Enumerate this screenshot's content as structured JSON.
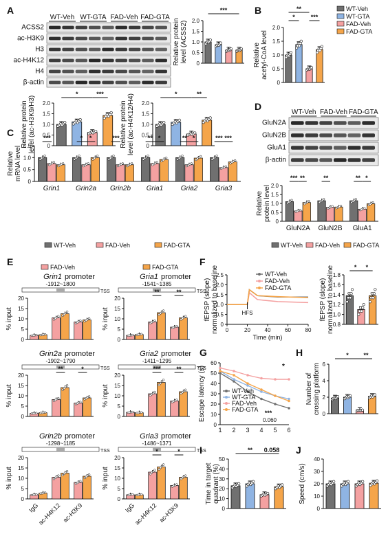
{
  "figure": {
    "panel_letters": [
      "A",
      "B",
      "C",
      "D",
      "E",
      "F",
      "G",
      "H",
      "I",
      "J"
    ]
  },
  "colors": {
    "wt_veh": "#707070",
    "wt_gta": "#8fb4e3",
    "fad_veh": "#f4a1a1",
    "fad_gta": "#f5a54a",
    "ink": "#111111"
  },
  "panel_a": {
    "blot_headers": [
      "WT-Veh",
      "WT-GTA",
      "FAD-Veh",
      "FAD-GTA"
    ],
    "blot_rows": [
      "ACSS2",
      "ac-H3K9",
      "H3",
      "ac-H4K12",
      "H4",
      "β-actin"
    ]
  },
  "panel_d": {
    "blot_headers": [
      "WT-Veh",
      "FAD-Veh",
      "FAD-GTA"
    ],
    "blot_rows": [
      "GluN2A",
      "GluN2B",
      "GluA1",
      "β-actin"
    ]
  },
  "panel_e_header": {
    "left_legend": "FAD-Veh",
    "right_legend": "FAD-GTA"
  },
  "legends": {
    "b": [
      "WT-Veh",
      "WT-GTA",
      "FAD-Veh",
      "FAD-GTA"
    ],
    "cd": [
      "WT-Veh",
      "FAD-Veh",
      "FAD-GTA"
    ],
    "f": [
      "WT-Veh",
      "FAD-Veh",
      "FAD-GTA"
    ],
    "g": [
      "WT-Veh",
      "WT-GTA",
      "FAD-Veh",
      "FAD-GTA"
    ]
  },
  "chart_data": [
    {
      "id": "A1",
      "type": "bar",
      "ylabel": "Relative protein level (ACSS2)",
      "ylim": [
        0,
        2.0
      ],
      "yticks": [
        "0",
        "0.5",
        "1.0",
        "1.5",
        "2.0"
      ],
      "categories": [
        "WT-Veh",
        "WT-GTA",
        "FAD-Veh",
        "FAD-GTA"
      ],
      "values": [
        1.0,
        0.87,
        0.62,
        0.62
      ],
      "sig": [
        "***"
      ]
    },
    {
      "id": "A2",
      "type": "bar",
      "ylabel": "Relative protein level (ac-H3K9/H3)",
      "ylim": [
        0,
        2.0
      ],
      "yticks": [
        "0",
        "0.5",
        "1.0",
        "1.5",
        "2.0"
      ],
      "categories": [
        "WT-Veh",
        "WT-GTA",
        "FAD-Veh",
        "FAD-GTA"
      ],
      "values": [
        1.0,
        1.12,
        0.62,
        1.42
      ],
      "sig": [
        "*",
        "***"
      ]
    },
    {
      "id": "A3",
      "type": "bar",
      "ylabel": "Relative protein level (ac-H4K12/H4)",
      "ylim": [
        0,
        2.0
      ],
      "yticks": [
        "0",
        "0.5",
        "1.0",
        "1.5",
        "2.0"
      ],
      "categories": [
        "WT-Veh",
        "WT-GTA",
        "FAD-Veh",
        "FAD-GTA"
      ],
      "values": [
        1.0,
        1.1,
        0.55,
        1.2
      ],
      "sig": [
        "*",
        "**"
      ]
    },
    {
      "id": "B",
      "type": "bar",
      "ylabel": "Relative acetyl-CoA level",
      "ylim": [
        0,
        2.0
      ],
      "yticks": [
        "0",
        "0.5",
        "1.0",
        "1.5",
        "2.0"
      ],
      "categories": [
        "WT-Veh",
        "WT-GTA",
        "FAD-Veh",
        "FAD-GTA"
      ],
      "values": [
        1.0,
        1.38,
        0.5,
        1.2
      ],
      "sig": [
        "*",
        "**",
        "***"
      ]
    },
    {
      "id": "C",
      "type": "bar",
      "ylabel": "Relative mRNA level",
      "ylim": [
        0,
        1.5
      ],
      "yticks": [
        "0",
        "0.5",
        "1.0",
        "1.5"
      ],
      "categories": [
        "Grin1",
        "Grin2a",
        "Grin2b",
        "Gria1",
        "Gria2",
        "Gria3"
      ],
      "series": [
        {
          "name": "WT-Veh",
          "values": [
            1.0,
            1.0,
            1.0,
            1.0,
            1.0,
            1.0
          ]
        },
        {
          "name": "FAD-Veh",
          "values": [
            0.75,
            0.7,
            0.7,
            0.75,
            0.7,
            0.58
          ]
        },
        {
          "name": "FAD-GTA",
          "values": [
            0.7,
            1.0,
            0.7,
            0.92,
            0.98,
            0.82
          ]
        }
      ],
      "sig": [
        "***",
        "*",
        "*",
        "***",
        "**",
        "*",
        "**",
        "*",
        "***",
        "***"
      ]
    },
    {
      "id": "D",
      "type": "bar",
      "ylabel": "Relative protein level",
      "ylim": [
        0,
        2.0
      ],
      "yticks": [
        "0",
        "0.5",
        "1.0",
        "1.5",
        "2.0"
      ],
      "categories": [
        "GluN2A",
        "GluN2B",
        "GluA1"
      ],
      "series": [
        {
          "name": "WT-Veh",
          "values": [
            1.1,
            1.15,
            1.15
          ]
        },
        {
          "name": "FAD-Veh",
          "values": [
            0.58,
            0.78,
            0.68
          ]
        },
        {
          "name": "FAD-GTA",
          "values": [
            1.05,
            0.8,
            0.98
          ]
        }
      ],
      "sig": [
        "***",
        "**",
        "**",
        "**",
        "*"
      ]
    },
    {
      "id": "E1",
      "type": "bar",
      "title": "Grin1 promoter",
      "region": "-1912~1800",
      "tss": "TSS",
      "ylabel": "% input",
      "ylim": [
        0,
        20
      ],
      "yticks": [
        "0",
        "5",
        "10",
        "15",
        "20"
      ],
      "categories": [
        "IgG",
        "ac-H4K12",
        "ac-H3K9"
      ],
      "series": [
        {
          "name": "FAD-Veh",
          "values": [
            2.0,
            10.5,
            8.5
          ]
        },
        {
          "name": "FAD-GTA",
          "values": [
            2.3,
            12.5,
            9.5
          ]
        }
      ],
      "sig": []
    },
    {
      "id": "E2",
      "type": "bar",
      "title": "Gria1 promoter",
      "region": "-1541~1385",
      "tss": "TSS",
      "ylabel": "% input",
      "ylim": [
        0,
        20
      ],
      "yticks": [
        "0",
        "5",
        "10",
        "15",
        "20"
      ],
      "categories": [
        "IgG",
        "ac-H4K12",
        "ac-H3K9"
      ],
      "series": [
        {
          "name": "FAD-Veh",
          "values": [
            2.0,
            8.5,
            6.0
          ]
        },
        {
          "name": "FAD-GTA",
          "values": [
            2.4,
            13.0,
            10.5
          ]
        }
      ],
      "sig": [
        "**",
        "**"
      ]
    },
    {
      "id": "E3",
      "type": "bar",
      "title": "Grin2a promoter",
      "region": "-1902~1790",
      "tss": "TSS",
      "ylabel": "% input",
      "ylim": [
        0,
        20
      ],
      "yticks": [
        "0",
        "5",
        "10",
        "15",
        "20"
      ],
      "categories": [
        "IgG",
        "ac-H4K12",
        "ac-H3K9"
      ],
      "series": [
        {
          "name": "FAD-Veh",
          "values": [
            1.5,
            8.2,
            6.5
          ]
        },
        {
          "name": "FAD-GTA",
          "values": [
            1.8,
            14.0,
            9.0
          ]
        }
      ],
      "sig": [
        "**",
        "*"
      ]
    },
    {
      "id": "E4",
      "type": "bar",
      "title": "Gria2 promoter",
      "region": "-1411~1295",
      "tss": "TSS",
      "ylabel": "% input",
      "ylim": [
        0,
        20
      ],
      "yticks": [
        "0",
        "5",
        "10",
        "15",
        "20"
      ],
      "categories": [
        "IgG",
        "ac-H4K12",
        "ac-H3K9"
      ],
      "series": [
        {
          "name": "FAD-Veh",
          "values": [
            2.0,
            11.0,
            7.5
          ]
        },
        {
          "name": "FAD-GTA",
          "values": [
            1.8,
            16.5,
            12.0
          ]
        }
      ],
      "sig": [
        "***",
        "**"
      ]
    },
    {
      "id": "E5",
      "type": "bar",
      "title": "Grin2b promoter",
      "region": "-1298~1185",
      "tss": "TSS",
      "ylabel": "% input",
      "ylim": [
        0,
        20
      ],
      "yticks": [
        "0",
        "5",
        "10",
        "15",
        "20"
      ],
      "categories": [
        "IgG",
        "ac-H4K12",
        "ac-H3K9"
      ],
      "series": [
        {
          "name": "FAD-Veh",
          "values": [
            2.0,
            10.5,
            8.0
          ]
        },
        {
          "name": "FAD-GTA",
          "values": [
            2.8,
            12.5,
            11.0
          ]
        }
      ],
      "sig": []
    },
    {
      "id": "E6",
      "type": "bar",
      "title": "Gria3 promoter",
      "region": "-1486~1371",
      "tss": "TSS",
      "ylabel": "% input",
      "ylim": [
        0,
        20
      ],
      "yticks": [
        "0",
        "5",
        "10",
        "15",
        "20"
      ],
      "categories": [
        "IgG",
        "ac-H4K12",
        "ac-H3K9"
      ],
      "series": [
        {
          "name": "FAD-Veh",
          "values": [
            2.0,
            13.0,
            6.5
          ]
        },
        {
          "name": "FAD-GTA",
          "values": [
            2.0,
            15.5,
            10.5
          ]
        }
      ],
      "sig": [
        "*",
        "*"
      ]
    },
    {
      "id": "F1",
      "type": "line",
      "ylabel": "fEPSP (slope) normalized to baseline",
      "xlabel": "Time (min)",
      "xlim": [
        0,
        80
      ],
      "ylim": [
        0,
        2.5
      ],
      "xticks": [
        "0",
        "20",
        "40",
        "60",
        "80"
      ],
      "yticks": [
        "0",
        "0.5",
        "1.0",
        "1.5",
        "2.0",
        "2.5"
      ],
      "annotation": "HFS",
      "series": [
        {
          "name": "WT-Veh",
          "x": [
            0,
            20,
            22,
            30,
            50,
            80
          ],
          "y": [
            1.0,
            1.0,
            1.75,
            1.45,
            1.38,
            1.38
          ]
        },
        {
          "name": "FAD-Veh",
          "x": [
            0,
            20,
            22,
            30,
            50,
            80
          ],
          "y": [
            1.0,
            1.0,
            1.6,
            1.25,
            1.15,
            1.1
          ]
        },
        {
          "name": "FAD-GTA",
          "x": [
            0,
            20,
            22,
            30,
            50,
            80
          ],
          "y": [
            1.0,
            1.0,
            1.75,
            1.45,
            1.4,
            1.35
          ]
        }
      ]
    },
    {
      "id": "F2",
      "type": "bar",
      "ylabel": "fEPSP (slope) normalized to baseline",
      "ylim": [
        0.8,
        1.8
      ],
      "yticks": [
        "0.8",
        "1.0",
        "1.2",
        "1.4",
        "1.6",
        "1.8"
      ],
      "categories": [
        "WT-Veh",
        "FAD-Veh",
        "FAD-GTA"
      ],
      "values": [
        1.38,
        1.1,
        1.38
      ],
      "sig": [
        "*",
        "*"
      ]
    },
    {
      "id": "G",
      "type": "line",
      "ylabel": "Escape latency (s)",
      "xlim": [
        1,
        6
      ],
      "ylim": [
        0,
        60
      ],
      "xticks": [
        "1",
        "2",
        "3",
        "4",
        "5",
        "6"
      ],
      "yticks": [
        "0",
        "10",
        "20",
        "30",
        "40",
        "50",
        "60"
      ],
      "annotations": [
        "*",
        "***",
        "0.060"
      ],
      "series": [
        {
          "name": "WT-Veh",
          "x": [
            1,
            2,
            3,
            4,
            5,
            6
          ],
          "y": [
            50,
            42,
            32,
            25,
            20,
            16
          ]
        },
        {
          "name": "WT-GTA",
          "x": [
            1,
            2,
            3,
            4,
            5,
            6
          ],
          "y": [
            52,
            44,
            38,
            32,
            28,
            25
          ]
        },
        {
          "name": "FAD-Veh",
          "x": [
            1,
            2,
            3,
            4,
            5,
            6
          ],
          "y": [
            55,
            52,
            48,
            45,
            44,
            44
          ]
        },
        {
          "name": "FAD-GTA",
          "x": [
            1,
            2,
            3,
            4,
            5,
            6
          ],
          "y": [
            52,
            48,
            40,
            34,
            28,
            23
          ]
        }
      ]
    },
    {
      "id": "H",
      "type": "bar",
      "ylabel": "Number of crossing platform",
      "ylim": [
        0,
        6
      ],
      "yticks": [
        "0",
        "2",
        "4",
        "6"
      ],
      "categories": [
        "WT-Veh",
        "WT-GTA",
        "FAD-Veh",
        "FAD-GTA"
      ],
      "values": [
        1.9,
        2.0,
        0.4,
        2.1
      ],
      "sig": [
        "*",
        "**"
      ]
    },
    {
      "id": "I",
      "type": "bar",
      "ylabel": "Time in target quadrant (%)",
      "ylim": [
        0,
        50
      ],
      "yticks": [
        "0",
        "10",
        "20",
        "30",
        "40",
        "50"
      ],
      "categories": [
        "WT-Veh",
        "WT-GTA",
        "FAD-Veh",
        "FAD-GTA"
      ],
      "values": [
        23,
        25,
        14,
        22
      ],
      "sig": [
        "**",
        "0.058"
      ]
    },
    {
      "id": "J",
      "type": "bar",
      "ylabel": "Speed (cm/s)",
      "ylim": [
        0,
        40
      ],
      "yticks": [
        "0",
        "10",
        "20",
        "30",
        "40"
      ],
      "categories": [
        "WT-Veh",
        "WT-GTA",
        "FAD-Veh",
        "FAD-GTA"
      ],
      "values": [
        20,
        20,
        20,
        20.5
      ],
      "sig": []
    }
  ]
}
